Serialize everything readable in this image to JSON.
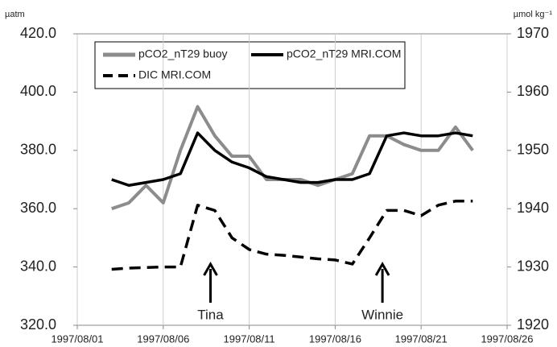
{
  "chart_data": {
    "type": "line",
    "y_label": "µatm",
    "y2_label": "µmol kg⁻¹",
    "x": [
      "1997/08/03",
      "1997/08/04",
      "1997/08/05",
      "1997/08/06",
      "1997/08/07",
      "1997/08/08",
      "1997/08/09",
      "1997/08/10",
      "1997/08/11",
      "1997/08/12",
      "1997/08/13",
      "1997/08/14",
      "1997/08/15",
      "1997/08/16",
      "1997/08/17",
      "1997/08/18",
      "1997/08/19",
      "1997/08/20",
      "1997/08/21",
      "1997/08/22",
      "1997/08/23",
      "1997/08/24"
    ],
    "series": [
      {
        "name": "pCO2_nT29 buoy",
        "color": "#8c8c8c",
        "style": "solid",
        "axis": "y",
        "values": [
          360,
          362,
          368,
          362,
          380,
          395,
          385,
          378,
          378,
          370,
          370,
          370,
          368,
          370,
          372,
          385,
          385,
          382,
          380,
          380,
          388,
          380
        ]
      },
      {
        "name": "pCO2_nT29 MRI.COM",
        "color": "#000000",
        "style": "solid",
        "axis": "y",
        "values": [
          370,
          368,
          369,
          370,
          372,
          386,
          380,
          376,
          374,
          371,
          370,
          369,
          369,
          370,
          370,
          372,
          385,
          386,
          385,
          385,
          386,
          385
        ]
      },
      {
        "name": "DIC MRI.COM",
        "color": "#000000",
        "style": "dashed",
        "axis": "y2",
        "values": [
          1929.6,
          1929.8,
          1929.9,
          1930,
          1930,
          1940.6,
          1939.7,
          1935,
          1933,
          1932.2,
          1932,
          1931.7,
          1931.4,
          1931.2,
          1930.5,
          1935,
          1939.7,
          1939.7,
          1938.8,
          1940.6,
          1941.3,
          1941.3
        ]
      }
    ],
    "xlim": [
      "1997/08/01",
      "1997/08/26"
    ],
    "xticks": [
      "1997/08/01",
      "1997/08/06",
      "1997/08/11",
      "1997/08/16",
      "1997/08/21",
      "1997/08/26"
    ],
    "ylim": [
      320,
      420
    ],
    "yticks": [
      {
        "value": 320,
        "label": "320.0"
      },
      {
        "value": 340,
        "label": "340.0"
      },
      {
        "value": 360,
        "label": "360.0"
      },
      {
        "value": 380,
        "label": "380.0"
      },
      {
        "value": 400,
        "label": "400.0"
      },
      {
        "value": 420,
        "label": "420.0"
      }
    ],
    "y2lim": [
      1920,
      1970
    ],
    "y2ticks": [
      1920,
      1930,
      1940,
      1950,
      1960,
      1970
    ],
    "grid": true,
    "annotations": [
      {
        "text": "Tina",
        "x": "1997/08/08"
      },
      {
        "text": "Winnie",
        "x": "1997/08/18"
      }
    ]
  }
}
